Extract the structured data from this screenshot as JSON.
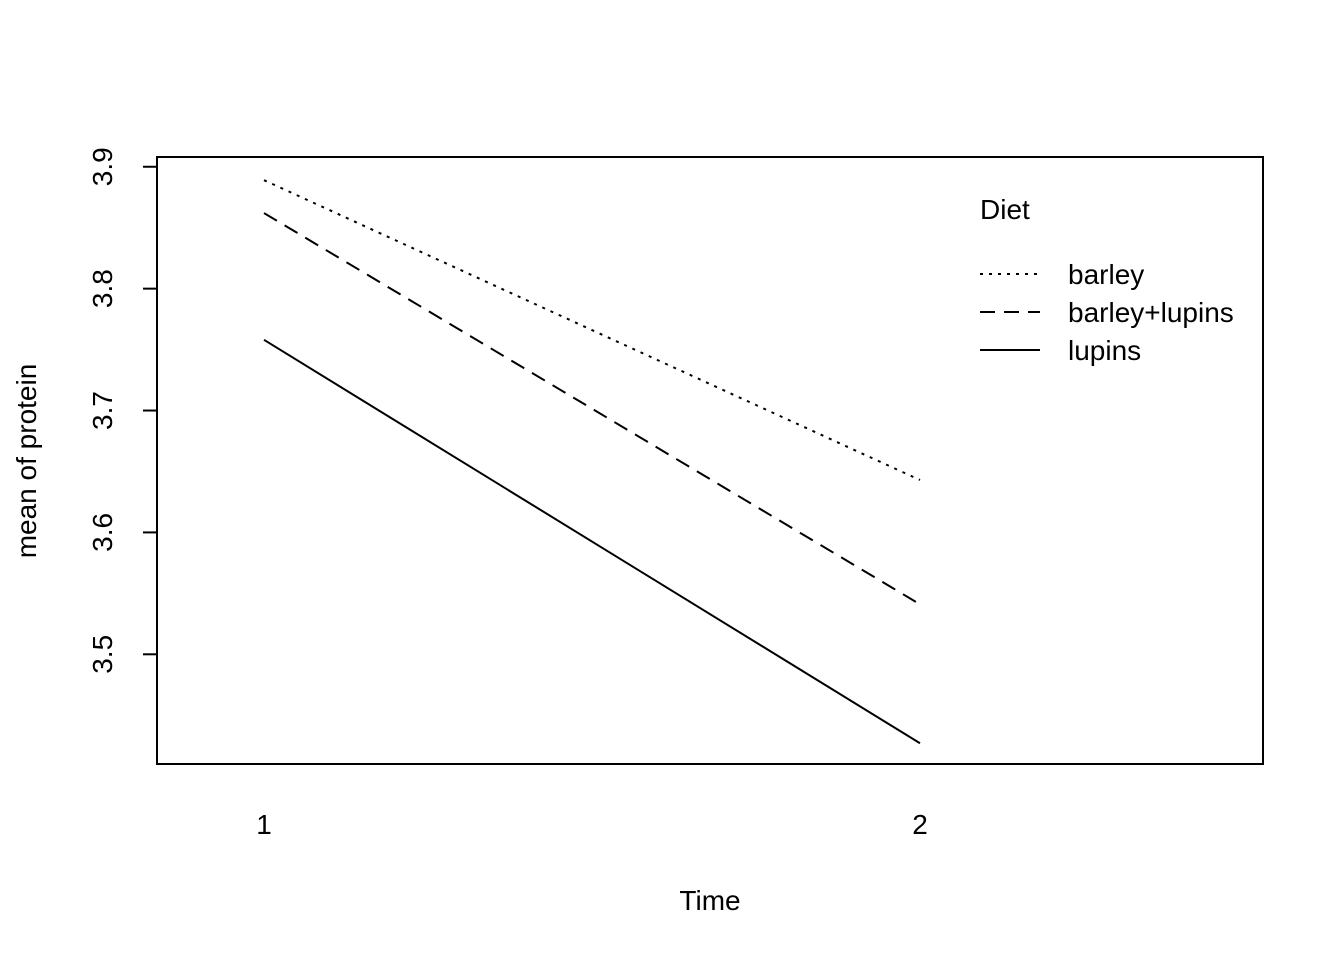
{
  "chart_data": {
    "type": "line",
    "title": "",
    "xlabel": "Time",
    "ylabel": "mean of  protein",
    "categories": [
      "1",
      "2"
    ],
    "ylim": [
      3.41,
      3.908
    ],
    "y_ticks": [
      "3.5",
      "3.6",
      "3.7",
      "3.8",
      "3.9"
    ],
    "grid": false,
    "legend": {
      "title": "Diet",
      "placement": "top-right",
      "entries": [
        "barley",
        "barley+lupins",
        "lupins"
      ]
    },
    "series": [
      {
        "name": "barley",
        "line_style": "dotted",
        "values": [
          3.889,
          3.643
        ]
      },
      {
        "name": "barley+lupins",
        "line_style": "dashed",
        "values": [
          3.862,
          3.541
        ]
      },
      {
        "name": "lupins",
        "line_style": "solid",
        "values": [
          3.758,
          3.427
        ]
      }
    ],
    "colors": {
      "line": "#000000",
      "background": "#ffffff"
    }
  }
}
